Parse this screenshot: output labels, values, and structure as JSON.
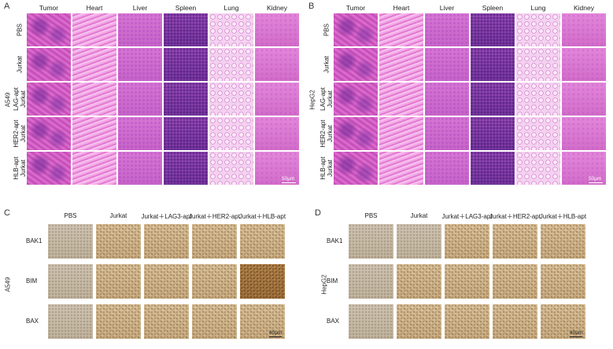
{
  "panels": {
    "A": {
      "letter": "A",
      "cell_line": "A549",
      "columns": [
        "Tumor",
        "Heart",
        "Liver",
        "Spleen",
        "Lung",
        "Kidney"
      ],
      "rows": [
        "PBS",
        "Jurkat",
        "LAG-apt\nJurkat",
        "HER2-apt\nJurkat",
        "HLB-apt\nJurkat"
      ],
      "scale_bar": "50μm"
    },
    "B": {
      "letter": "B",
      "cell_line": "HepG2",
      "columns": [
        "Tumor",
        "Heart",
        "Liver",
        "Spleen",
        "Lung",
        "Kidney"
      ],
      "rows": [
        "PBS",
        "Jurkat",
        "LAG-apt\nJurkat",
        "HER2-apt\nJurkat",
        "HLB-apt\nJurkat"
      ],
      "scale_bar": "50μm"
    },
    "C": {
      "letter": "C",
      "cell_line": "A549",
      "columns": [
        "PBS",
        "Jurkat",
        "Jurkat＋LAG3-apt",
        "Jurkat＋HER2-apt",
        "Jurkat＋HLB-apt"
      ],
      "rows": [
        "BAK1",
        "BIM",
        "BAX"
      ],
      "scale_bar": "40μm"
    },
    "D": {
      "letter": "D",
      "cell_line": "HepG2",
      "columns": [
        "PBS",
        "Jurkat",
        "Jurkat＋LAG3-apt",
        "Jurkat＋HER2-apt",
        "Jurkat＋HLB-apt"
      ],
      "rows": [
        "BAK1",
        "BIM",
        "BAX"
      ],
      "scale_bar": "40μm"
    }
  }
}
